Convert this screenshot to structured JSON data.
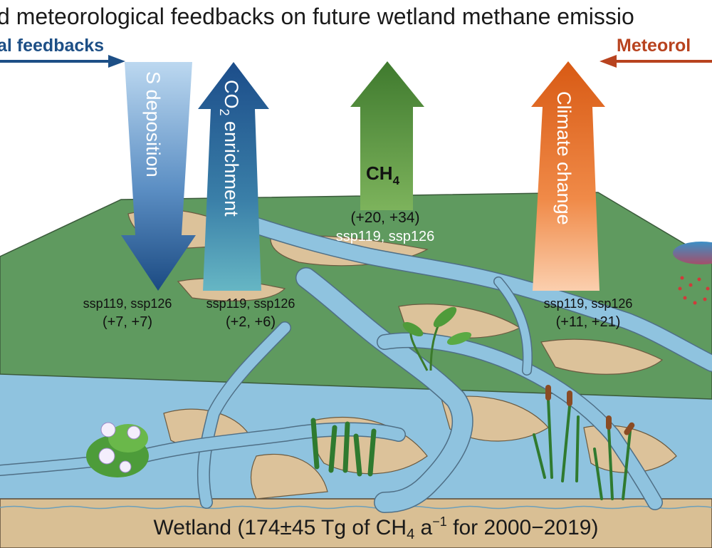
{
  "title": "d meteorological feedbacks on future wetland methane emissio",
  "left_header": "al feedbacks",
  "right_header": "Meteorol",
  "arrows": {
    "s_deposition": {
      "label": "S deposition",
      "scenarios": "ssp119, ssp126",
      "values": "(+7, +7)"
    },
    "co2_enrichment": {
      "label_prefix": "CO",
      "label_sub": "2",
      "label_suffix": " enrichment",
      "scenarios": "ssp119, ssp126",
      "values": "(+2, +6)"
    },
    "ch4": {
      "label_prefix": "CH",
      "label_sub": "4",
      "values": "(+20, +34)",
      "scenarios": "ssp119, ssp126"
    },
    "climate_change": {
      "label": "Climate change",
      "scenarios": "ssp119, ssp126",
      "values": "(+11, +21)"
    }
  },
  "footer": {
    "part1": "Wetland (174",
    "pm": "±",
    "part2": "45 Tg of CH",
    "sub": "4",
    "part3": " a",
    "sup": "−1",
    "part4": " for 2000−2019)"
  },
  "colors": {
    "left_blue": "#1d4f86",
    "right_orange": "#b8431f",
    "land": "#5f9a5f",
    "water": "#8fc3df",
    "sand": "#dcc29a",
    "ch4_green": "#5c9444",
    "climate_orange": "#e96f2a"
  }
}
